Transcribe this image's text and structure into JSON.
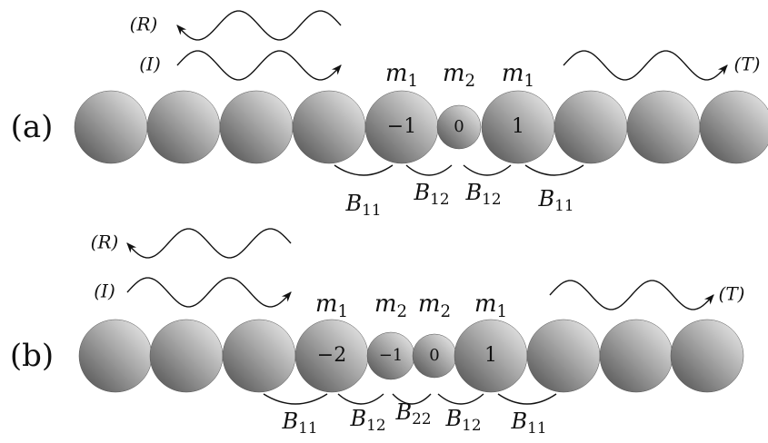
{
  "panels": [
    {
      "label": "(a)",
      "reflected": "(R)",
      "incident": "(I)",
      "transmitted": "(T)",
      "sites": [
        {
          "mass": {
            "base": "m",
            "sub": "1"
          },
          "index": "−1"
        },
        {
          "mass": {
            "base": "m",
            "sub": "2"
          },
          "index": "0"
        },
        {
          "mass": {
            "base": "m",
            "sub": "1"
          },
          "index": "1"
        }
      ],
      "bonds": [
        {
          "base": "B",
          "sub": "11"
        },
        {
          "base": "B",
          "sub": "12"
        },
        {
          "base": "B",
          "sub": "12"
        },
        {
          "base": "B",
          "sub": "11"
        }
      ]
    },
    {
      "label": "(b)",
      "reflected": "(R)",
      "incident": "(I)",
      "transmitted": "(T)",
      "sites": [
        {
          "mass": {
            "base": "m",
            "sub": "1"
          },
          "index": "−2"
        },
        {
          "mass": {
            "base": "m",
            "sub": "2"
          },
          "index": "−1"
        },
        {
          "mass": {
            "base": "m",
            "sub": "2"
          },
          "index": "0"
        },
        {
          "mass": {
            "base": "m",
            "sub": "1"
          },
          "index": "1"
        }
      ],
      "bonds": [
        {
          "base": "B",
          "sub": "11"
        },
        {
          "base": "B",
          "sub": "12"
        },
        {
          "base": "B",
          "sub": "22"
        },
        {
          "base": "B",
          "sub": "12"
        },
        {
          "base": "B",
          "sub": "11"
        }
      ]
    }
  ]
}
